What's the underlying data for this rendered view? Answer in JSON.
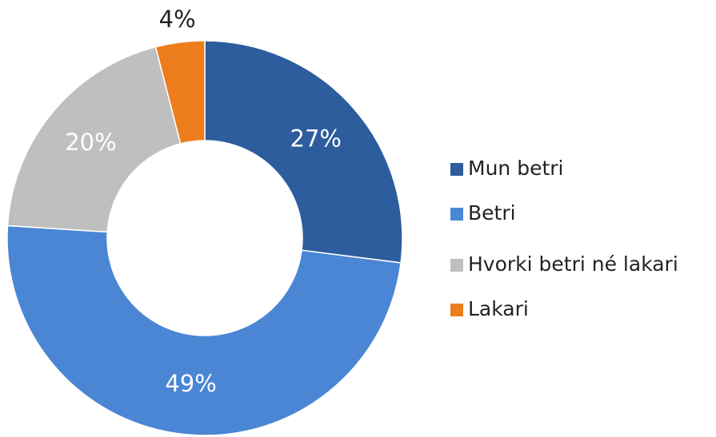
{
  "chart_data": {
    "type": "donut",
    "categories": [
      "Mun betri",
      "Betri",
      "Hvorki betri né lakari",
      "Lakari"
    ],
    "values": [
      27,
      49,
      20,
      4
    ],
    "value_labels": [
      "27%",
      "49%",
      "20%",
      "4%"
    ],
    "colors": [
      "#2e5d9e",
      "#4a86d4",
      "#bfbfbf",
      "#ed7d1c"
    ],
    "legend": "right"
  }
}
